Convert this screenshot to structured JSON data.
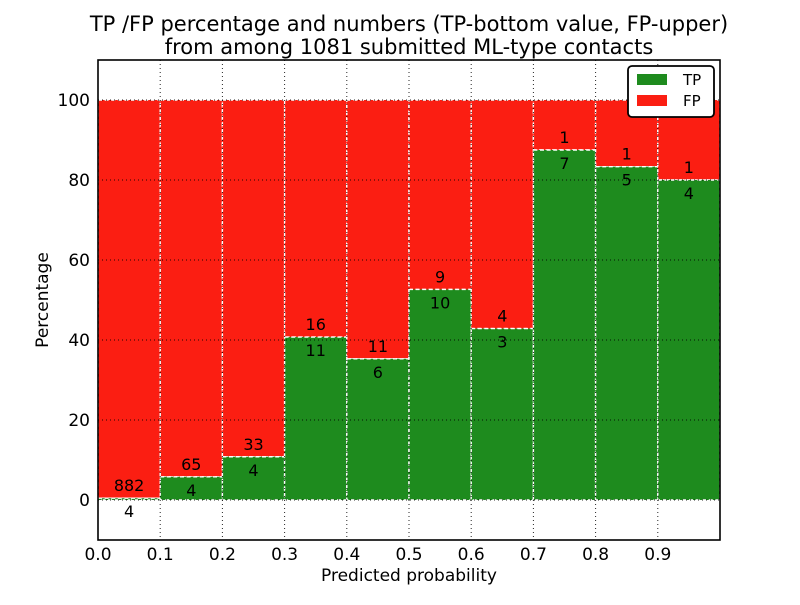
{
  "figure": {
    "title_line1": "TP /FP percentage and numbers (TP-bottom value, FP-upper)",
    "title_line2": "from among 1081 submitted ML-type contacts",
    "xlabel": "Predicted probability",
    "ylabel": "Percentage"
  },
  "legend": {
    "position": "upper right",
    "entries": [
      {
        "label": "TP",
        "color": "#1e8b1e"
      },
      {
        "label": "FP",
        "color": "#fb1e12"
      }
    ]
  },
  "chart_data": {
    "type": "bar",
    "stacked": true,
    "normalized_to_percent": true,
    "title": "TP /FP percentage and numbers (TP-bottom value, FP-upper) from among 1081 submitted ML-type contacts",
    "xlabel": "Predicted probability",
    "ylabel": "Percentage",
    "total_contacts": 1081,
    "bin_width": 0.1,
    "bin_starts": [
      0.0,
      0.1,
      0.2,
      0.3,
      0.4,
      0.5,
      0.6,
      0.7,
      0.8,
      0.9
    ],
    "series": [
      {
        "name": "TP",
        "color": "#1e8b1e",
        "counts": [
          4,
          4,
          4,
          11,
          6,
          10,
          3,
          7,
          5,
          4
        ]
      },
      {
        "name": "FP",
        "color": "#fb1e12",
        "counts": [
          882,
          65,
          33,
          16,
          11,
          9,
          4,
          1,
          1,
          1
        ]
      }
    ],
    "tp_percent_of_bin": [
      0.5,
      5.8,
      10.8,
      40.7,
      35.3,
      52.6,
      42.9,
      87.5,
      83.3,
      80.0
    ],
    "xlim": [
      0.0,
      1.0
    ],
    "ylim": [
      -10,
      110
    ],
    "yticks": [
      0,
      20,
      40,
      60,
      80,
      100
    ],
    "xtick_labels": [
      "0.0",
      "0.1",
      "0.2",
      "0.3",
      "0.4",
      "0.5",
      "0.6",
      "0.7",
      "0.8",
      "0.9"
    ],
    "grid": "dotted black, on both axes, drawn above bars",
    "bar_edge_style": "white dashed",
    "legend_position": "upper right"
  }
}
